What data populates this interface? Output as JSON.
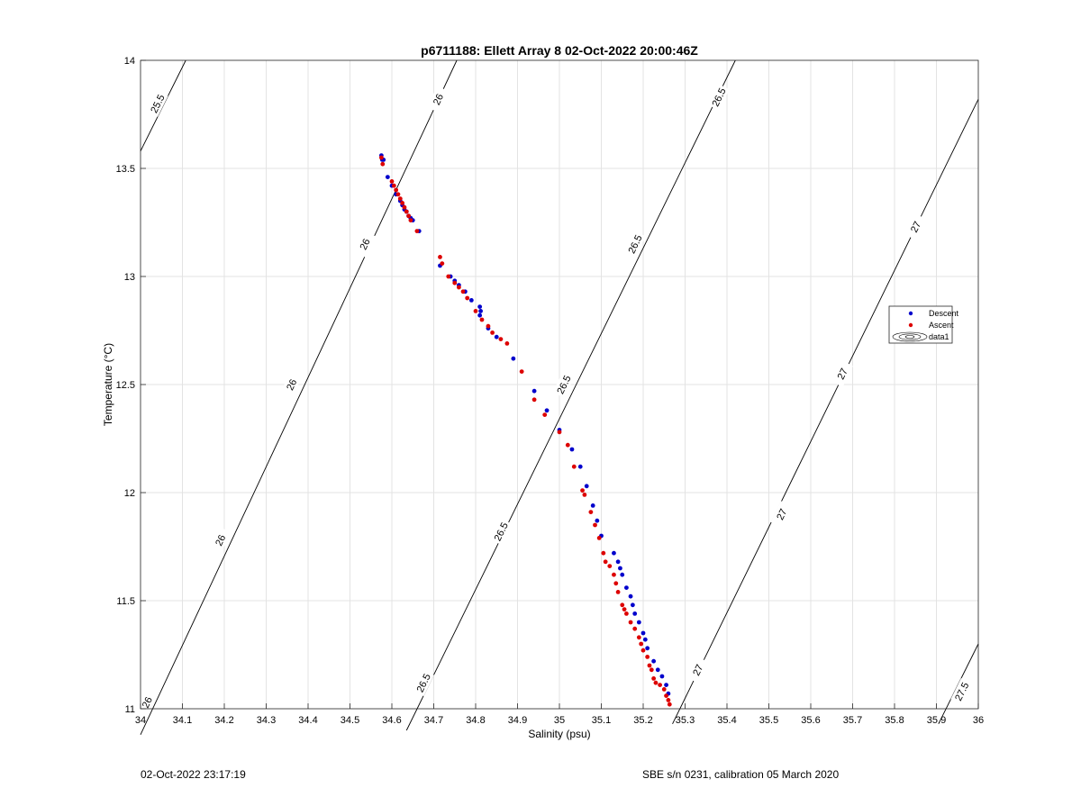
{
  "chart_data": {
    "type": "scatter",
    "title": "p6711188: Ellett Array 8 02-Oct-2022 20:00:46Z",
    "xlabel": "Salinity (psu)",
    "ylabel": "Temperature (°C)",
    "xlim": [
      34,
      36
    ],
    "ylim": [
      11,
      14
    ],
    "xticks": [
      "34",
      "34.1",
      "34.2",
      "34.3",
      "34.4",
      "34.5",
      "34.6",
      "34.7",
      "34.8",
      "34.9",
      "35",
      "35.1",
      "35.2",
      "35.3",
      "35.4",
      "35.5",
      "35.6",
      "35.7",
      "35.8",
      "35.9",
      "36"
    ],
    "yticks": [
      "11",
      "11.5",
      "12",
      "12.5",
      "13",
      "13.5",
      "14"
    ],
    "grid": true,
    "legend_position": "right",
    "legend": [
      "Descent",
      "Ascent",
      "data1"
    ],
    "colors": {
      "descent": "#0000cc",
      "ascent": "#dd0000",
      "contour": "#000000",
      "grid": "#e3e3e3"
    },
    "contours": [
      {
        "label": "25.5",
        "line": [
          [
            34.0,
            13.58
          ],
          [
            34.108,
            14.0
          ]
        ],
        "labels": [
          [
            34.04,
            13.8
          ]
        ]
      },
      {
        "label": "26",
        "line": [
          [
            34.0,
            10.88
          ],
          [
            34.755,
            14.0
          ]
        ],
        "labels": [
          [
            34.015,
            11.03
          ],
          [
            34.19,
            11.78
          ],
          [
            34.36,
            12.5
          ],
          [
            34.535,
            13.15
          ],
          [
            34.71,
            13.82
          ]
        ]
      },
      {
        "label": "26.5",
        "line": [
          [
            34.635,
            10.9
          ],
          [
            35.42,
            14.0
          ]
        ],
        "labels": [
          [
            34.675,
            11.12
          ],
          [
            34.86,
            11.82
          ],
          [
            35.01,
            12.5
          ],
          [
            35.18,
            13.15
          ],
          [
            35.38,
            13.83
          ]
        ]
      },
      {
        "label": "27",
        "line": [
          [
            35.27,
            10.93
          ],
          [
            36.0,
            13.82
          ]
        ],
        "labels": [
          [
            35.33,
            11.18
          ],
          [
            35.53,
            11.9
          ],
          [
            35.675,
            12.55
          ],
          [
            35.85,
            13.23
          ]
        ]
      },
      {
        "label": "27.5",
        "line": [
          [
            35.905,
            10.93
          ],
          [
            36.0,
            11.3
          ]
        ],
        "labels": [
          [
            35.96,
            11.08
          ]
        ]
      }
    ],
    "series": [
      {
        "name": "Descent",
        "x": [
          34.575,
          34.577,
          34.58,
          34.59,
          34.6,
          34.61,
          34.62,
          34.625,
          34.63,
          34.635,
          34.64,
          34.645,
          34.65,
          34.665,
          34.715,
          34.74,
          34.75,
          34.76,
          34.775,
          34.79,
          34.81,
          34.812,
          34.81,
          34.83,
          34.85,
          34.89,
          34.94,
          34.97,
          35.0,
          35.03,
          35.05,
          35.065,
          35.08,
          35.09,
          35.1,
          35.13,
          35.14,
          35.145,
          35.15,
          35.16,
          35.17,
          35.175,
          35.18,
          35.19,
          35.2,
          35.205,
          35.21,
          35.225,
          35.235,
          35.245,
          35.255,
          35.26
        ],
        "y": [
          13.56,
          13.54,
          13.54,
          13.46,
          13.42,
          13.38,
          13.35,
          13.33,
          13.31,
          13.3,
          13.28,
          13.27,
          13.26,
          13.21,
          13.05,
          13.0,
          12.98,
          12.96,
          12.93,
          12.89,
          12.86,
          12.84,
          12.82,
          12.76,
          12.72,
          12.62,
          12.47,
          12.38,
          12.29,
          12.2,
          12.12,
          12.03,
          11.94,
          11.87,
          11.8,
          11.72,
          11.68,
          11.65,
          11.62,
          11.56,
          11.52,
          11.48,
          11.44,
          11.4,
          11.35,
          11.32,
          11.28,
          11.22,
          11.18,
          11.15,
          11.11,
          11.07
        ]
      },
      {
        "name": "Ascent",
        "x": [
          34.575,
          34.578,
          34.6,
          34.605,
          34.61,
          34.615,
          34.62,
          34.625,
          34.63,
          34.635,
          34.64,
          34.645,
          34.66,
          34.715,
          34.72,
          34.735,
          34.75,
          34.76,
          34.77,
          34.78,
          34.8,
          34.815,
          34.83,
          34.84,
          34.86,
          34.875,
          34.91,
          34.94,
          34.965,
          35.0,
          35.02,
          35.035,
          35.055,
          35.06,
          35.075,
          35.085,
          35.095,
          35.105,
          35.11,
          35.12,
          35.13,
          35.135,
          35.14,
          35.15,
          35.155,
          35.16,
          35.17,
          35.18,
          35.19,
          35.195,
          35.2,
          35.21,
          35.215,
          35.22,
          35.225,
          35.23,
          35.24,
          35.25,
          35.255,
          35.26,
          35.263
        ],
        "y": [
          13.55,
          13.52,
          13.44,
          13.42,
          13.4,
          13.38,
          13.36,
          13.34,
          13.32,
          13.3,
          13.28,
          13.26,
          13.21,
          13.09,
          13.06,
          13.0,
          12.97,
          12.95,
          12.93,
          12.9,
          12.84,
          12.8,
          12.77,
          12.74,
          12.71,
          12.69,
          12.56,
          12.43,
          12.36,
          12.28,
          12.22,
          12.12,
          12.01,
          11.99,
          11.91,
          11.85,
          11.79,
          11.72,
          11.68,
          11.66,
          11.62,
          11.58,
          11.54,
          11.48,
          11.46,
          11.44,
          11.4,
          11.37,
          11.33,
          11.3,
          11.27,
          11.24,
          11.2,
          11.18,
          11.14,
          11.12,
          11.11,
          11.09,
          11.06,
          11.04,
          11.02
        ]
      }
    ]
  },
  "footer": {
    "left": "02-Oct-2022 23:17:19",
    "right": "SBE s/n 0231, calibration 05 March 2020"
  }
}
